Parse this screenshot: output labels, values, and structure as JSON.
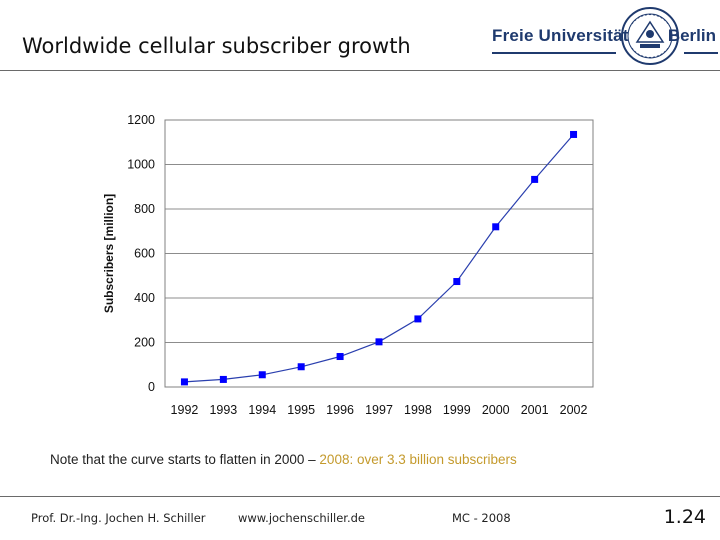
{
  "slide": {
    "title": "Worldwide cellular subscriber growth",
    "note_main": "Note that the curve starts to flatten in 2000 – ",
    "note_highlight": "2008: over 3.3 billion subscribers",
    "footer_author": "Prof. Dr.-Ing. Jochen H. Schiller",
    "footer_url": "www.jochenschiller.de",
    "footer_course": "MC - 2008",
    "page_number": "1.24"
  },
  "logo": {
    "left_text": "Freie Universität",
    "right_text": "Berlin",
    "color": "#1f3a6e"
  },
  "colors": {
    "series": "#0000ff",
    "line": "#2a3fae",
    "highlight": "#c49a2c",
    "plot_border": "#808080"
  },
  "chart_data": {
    "type": "line",
    "title": "",
    "xlabel": "",
    "ylabel": "Subscribers [million]",
    "categories": [
      "1992",
      "1993",
      "1994",
      "1995",
      "1996",
      "1997",
      "1998",
      "1999",
      "2000",
      "2001",
      "2002"
    ],
    "series": [
      {
        "values": [
          23,
          34,
          55,
          91,
          137,
          203,
          306,
          474,
          720,
          933,
          1135
        ]
      }
    ],
    "ylim": [
      0,
      1200
    ],
    "yticks": [
      0,
      200,
      400,
      600,
      800,
      1000,
      1200
    ],
    "grid": true,
    "legend": "none"
  }
}
